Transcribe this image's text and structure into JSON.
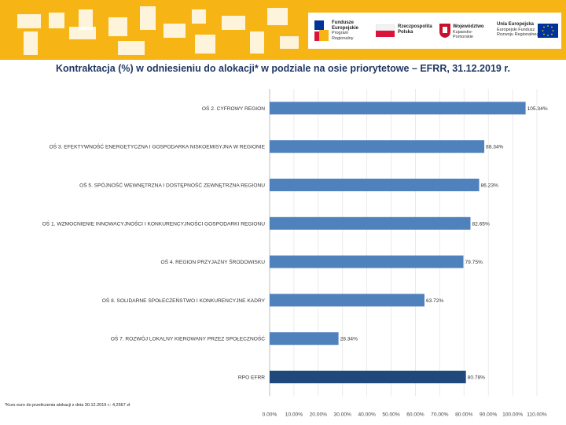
{
  "header": {
    "logos": [
      {
        "name": "Fundusze Europejskie",
        "line1": "Fundusze",
        "line2": "Europejskie",
        "line3": "Program Regionalny"
      },
      {
        "name": "Rzeczpospolita Polska",
        "line1": "Rzeczpospolita",
        "line2": "Polska"
      },
      {
        "name": "Województwo Kujawsko-Pomorskie",
        "line1": "Województwo",
        "line2": "Kujawsko-Pomorskie"
      },
      {
        "name": "Unia Europejska",
        "line1": "Unia Europejska",
        "line2": "Europejski Fundusz",
        "line3": "Rozwoju Regionalnego"
      }
    ],
    "colors": {
      "banner": "#f6b515",
      "eu_blue": "#003399",
      "pl_red": "#dc143c"
    }
  },
  "chart_data": {
    "type": "bar",
    "orientation": "horizontal",
    "title": "Kontraktacja (%) w odniesieniu do alokacji* w podziale na osie priorytetowe – EFRR, 31.12.2019 r.",
    "categories": [
      "OŚ 2. CYFROWY REGION",
      "OŚ 3. EFEKTYWNOŚĆ ENERGETYCZNA I GOSPODARKA NISKOEMISYJNA W REGIONIE",
      "OŚ 5. SPÓJNOŚĆ WEWNĘTRZNA I DOSTĘPNOŚĆ ZEWNĘTRZNA REGIONU",
      "OŚ 1. WZMOCNIENIE INNOWACYJNOŚCI I KONKURENCYJNOŚCI GOSPODARKI REGIONU",
      "OŚ 4. REGION PRZYJAZNY ŚRODOWISKU",
      "OŚ 8. SOLIDARNE SPOŁECZEŃSTWO I KONKURENCYJNE KADRY",
      "OŚ 7. ROZWÓJ LOKALNY KIEROWANY PRZEZ SPOŁECZNOŚĆ",
      "RPO EFRR"
    ],
    "values": [
      105.34,
      88.34,
      86.23,
      82.65,
      79.75,
      63.72,
      28.34,
      80.78
    ],
    "value_labels": [
      "105.34%",
      "88.34%",
      "86.23%",
      "82.65%",
      "79.75%",
      "63.72%",
      "28.34%",
      "80.78%"
    ],
    "bar_colors": [
      "#4f81bd",
      "#4f81bd",
      "#4f81bd",
      "#4f81bd",
      "#4f81bd",
      "#4f81bd",
      "#4f81bd",
      "#1f497d"
    ],
    "xlim": [
      0,
      110
    ],
    "xticks": [
      0,
      10,
      20,
      30,
      40,
      50,
      60,
      70,
      80,
      90,
      100,
      110
    ],
    "xtick_labels": [
      "0.00%",
      "10.00%",
      "20.00%",
      "30.00%",
      "40.00%",
      "50.00%",
      "60.00%",
      "70.00%",
      "80.00%",
      "90.00%",
      "100.00%",
      "110.00%"
    ],
    "grid": true
  },
  "footnote": "*Kurs euro do przeliczenia alokacji z dnia 30.12.2019 r.: 4,2567 zł"
}
